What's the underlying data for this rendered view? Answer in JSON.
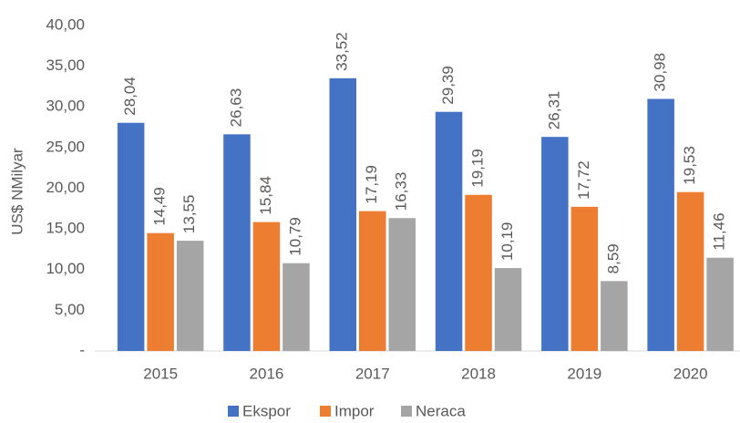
{
  "chart_data": {
    "type": "bar",
    "y_label": "US$ NMilyar",
    "categories": [
      "2015",
      "2016",
      "2017",
      "2018",
      "2019",
      "2020"
    ],
    "series": [
      {
        "name": "Ekspor",
        "color": "#4472c4",
        "values": [
          28.04,
          26.63,
          33.52,
          29.39,
          26.31,
          30.98
        ],
        "value_labels": [
          "28,04",
          "26,63",
          "33,52",
          "29,39",
          "26,31",
          "30,98"
        ]
      },
      {
        "name": "Impor",
        "color": "#ed7d31",
        "values": [
          14.49,
          15.84,
          17.19,
          19.19,
          17.72,
          19.53
        ],
        "value_labels": [
          "14,49",
          "15,84",
          "17,19",
          "19,19",
          "17,72",
          "19,53"
        ]
      },
      {
        "name": "Neraca",
        "color": "#a5a5a5",
        "values": [
          13.55,
          10.79,
          16.33,
          10.19,
          8.59,
          11.46
        ],
        "value_labels": [
          "13,55",
          "10,79",
          "16,33",
          "10,19",
          "8,59",
          "11,46"
        ]
      }
    ],
    "ylim": [
      0,
      40
    ],
    "yticks": [
      {
        "value": 0,
        "label": "-"
      },
      {
        "value": 5,
        "label": "5,00"
      },
      {
        "value": 10,
        "label": "10,00"
      },
      {
        "value": 15,
        "label": "15,00"
      },
      {
        "value": 20,
        "label": "20,00"
      },
      {
        "value": 25,
        "label": "25,00"
      },
      {
        "value": 30,
        "label": "30,00"
      },
      {
        "value": 35,
        "label": "35,00"
      },
      {
        "value": 40,
        "label": "40,00"
      }
    ],
    "grid": false,
    "legend": "bottom"
  }
}
